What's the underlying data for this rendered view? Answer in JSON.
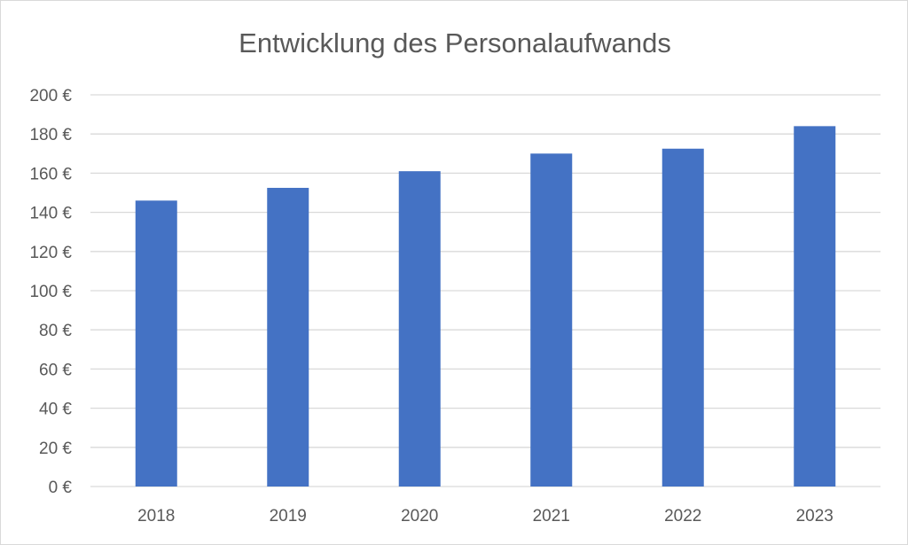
{
  "chart_data": {
    "type": "bar",
    "title": "Entwicklung des Personalaufwands",
    "categories": [
      "2018",
      "2019",
      "2020",
      "2021",
      "2022",
      "2023"
    ],
    "values": [
      146,
      152.5,
      161,
      170,
      172.5,
      184
    ],
    "ylim": [
      0,
      200
    ],
    "yticks": [
      0,
      20,
      40,
      60,
      80,
      100,
      120,
      140,
      160,
      180,
      200
    ],
    "ytick_labels": [
      "0 €",
      "20 €",
      "40 €",
      "60 €",
      "80 €",
      "100 €",
      "120 €",
      "140 €",
      "160 €",
      "180 €",
      "200 €"
    ],
    "xlabel": "",
    "ylabel": "",
    "grid": true,
    "legend": false,
    "bar_color": "#4472c4",
    "grid_color": "#d9d9d9"
  }
}
